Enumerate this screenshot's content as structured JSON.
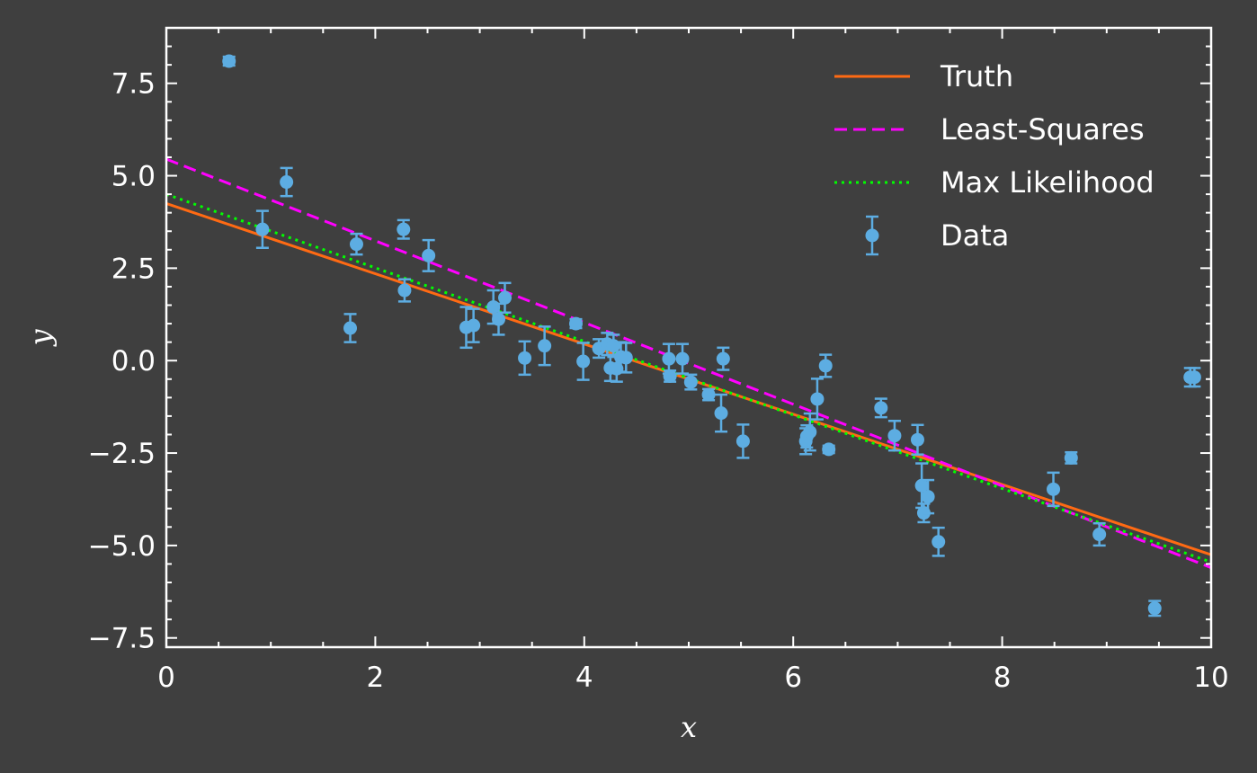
{
  "chart_data": {
    "type": "scatter",
    "title": "",
    "xlabel": "x",
    "ylabel": "y",
    "xlim": [
      0,
      10
    ],
    "ylim": [
      -7.75,
      9.0
    ],
    "x_ticks": [
      0,
      2,
      4,
      6,
      8,
      10
    ],
    "x_tick_labels": [
      "0",
      "2",
      "4",
      "6",
      "8",
      "10"
    ],
    "y_ticks": [
      -7.5,
      -5.0,
      -2.5,
      0.0,
      2.5,
      5.0,
      7.5
    ],
    "y_tick_labels": [
      "−7.5",
      "−5.0",
      "−2.5",
      "0.0",
      "2.5",
      "5.0",
      "7.5"
    ],
    "grid": false,
    "legend_position": "top-right",
    "colors": {
      "background": "#3f3f3f",
      "axes": "#ffffff",
      "text": "#ffffff",
      "truth": "#ff6a13",
      "least_squares": "#ff00ff",
      "max_likelihood": "#00ff00",
      "data": "#5dade2"
    },
    "lines": [
      {
        "name": "Truth",
        "style": "solid",
        "color": "#ff6a13",
        "x": [
          0,
          10
        ],
        "y": [
          4.25,
          -5.25
        ]
      },
      {
        "name": "Least-Squares",
        "style": "dashed",
        "color": "#ff00ff",
        "x": [
          0,
          10
        ],
        "y": [
          5.45,
          -5.6
        ]
      },
      {
        "name": "Max Likelihood",
        "style": "dotted",
        "color": "#00ff00",
        "x": [
          0,
          10
        ],
        "y": [
          4.5,
          -5.45
        ]
      }
    ],
    "series": [
      {
        "name": "Data",
        "color": "#5dade2",
        "x": [
          0.6,
          0.92,
          1.15,
          1.76,
          1.82,
          2.27,
          2.28,
          2.51,
          2.87,
          2.94,
          3.13,
          3.18,
          3.24,
          3.43,
          3.62,
          3.92,
          3.99,
          4.14,
          4.22,
          4.25,
          4.28,
          4.31,
          4.35,
          4.4,
          4.81,
          4.82,
          4.94,
          5.02,
          5.19,
          5.31,
          5.33,
          5.52,
          6.12,
          6.13,
          6.16,
          6.23,
          6.31,
          6.34,
          6.84,
          6.97,
          7.19,
          7.23,
          7.25,
          7.29,
          7.39,
          8.49,
          8.66,
          8.93,
          9.46,
          9.8,
          9.84
        ],
        "y": [
          8.1,
          3.55,
          4.83,
          0.88,
          3.15,
          3.55,
          1.9,
          2.84,
          0.9,
          0.95,
          1.45,
          1.12,
          1.7,
          0.07,
          0.4,
          1.0,
          -0.02,
          0.33,
          0.45,
          -0.2,
          0.4,
          -0.22,
          0.1,
          0.08,
          0.05,
          -0.42,
          0.05,
          -0.58,
          -0.92,
          -1.42,
          0.05,
          -2.18,
          -2.18,
          -2.05,
          -1.93,
          -1.04,
          -0.14,
          -2.4,
          -1.28,
          -2.03,
          -2.14,
          -3.38,
          -4.12,
          -3.68,
          -4.9,
          -3.48,
          -2.63,
          -4.7,
          -6.7,
          -0.45,
          -0.45
        ],
        "yerr": [
          0.12,
          0.5,
          0.38,
          0.38,
          0.28,
          0.25,
          0.3,
          0.42,
          0.55,
          0.45,
          0.45,
          0.42,
          0.4,
          0.45,
          0.52,
          0.12,
          0.5,
          0.25,
          0.3,
          0.35,
          0.3,
          0.35,
          0.4,
          0.4,
          0.4,
          0.15,
          0.4,
          0.2,
          0.15,
          0.5,
          0.3,
          0.45,
          0.35,
          0.3,
          0.5,
          0.55,
          0.3,
          0.1,
          0.25,
          0.4,
          0.4,
          0.6,
          0.25,
          0.45,
          0.38,
          0.45,
          0.15,
          0.3,
          0.2,
          0.25,
          0.25
        ]
      }
    ],
    "legend": [
      {
        "label": "Truth",
        "kind": "solid"
      },
      {
        "label": "Least-Squares",
        "kind": "dashed"
      },
      {
        "label": "Max Likelihood",
        "kind": "dotted"
      },
      {
        "label": "Data",
        "kind": "errorbar-marker"
      }
    ]
  }
}
